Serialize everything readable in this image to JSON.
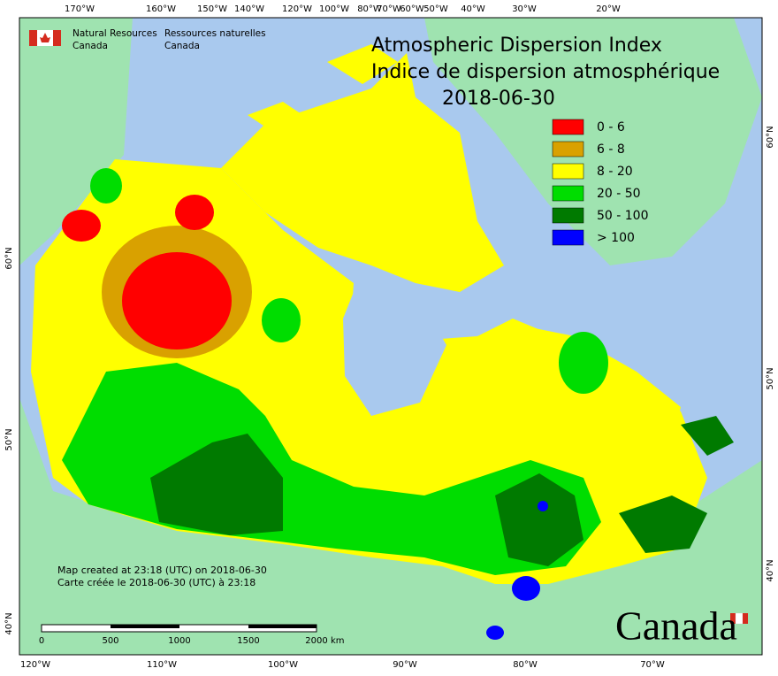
{
  "header": {
    "org_en": [
      "Natural Resources",
      "Canada"
    ],
    "org_fr": [
      "Ressources naturelles",
      "Canada"
    ]
  },
  "title": [
    "Atmospheric Dispersion Index",
    "Indice de dispersion atmosphérique"
  ],
  "date": "2018-06-30",
  "legend": [
    {
      "label": "0 - 6",
      "color": "#ff0000"
    },
    {
      "label": "6 - 8",
      "color": "#d9a100"
    },
    {
      "label": "8 - 20",
      "color": "#ffff00"
    },
    {
      "label": "20 - 50",
      "color": "#00dd00"
    },
    {
      "label": "50 - 100",
      "color": "#007a00"
    },
    {
      "label": "> 100",
      "color": "#0000ff"
    }
  ],
  "graticule": {
    "top": [
      "170°W",
      "160°W",
      "150°W",
      "140°W",
      "120°W",
      "100°W",
      "80°W",
      "70°W",
      "60°W",
      "50°W",
      "40°W",
      "30°W",
      "20°W"
    ],
    "bottom": [
      "120°W",
      "110°W",
      "100°W",
      "90°W",
      "80°W",
      "70°W"
    ],
    "left": [
      "60°N",
      "50°N",
      "40°N"
    ],
    "right": [
      "60°N",
      "50°N",
      "40°N"
    ]
  },
  "footnote": [
    "Map created at 23:18 (UTC) on 2018-06-30",
    "Carte créée le 2018-06-30 (UTC) à 23:18"
  ],
  "scale": {
    "labels": [
      "0",
      "500",
      "1000",
      "1500",
      "2000"
    ],
    "unit": "km"
  },
  "wordmark": "Canada"
}
